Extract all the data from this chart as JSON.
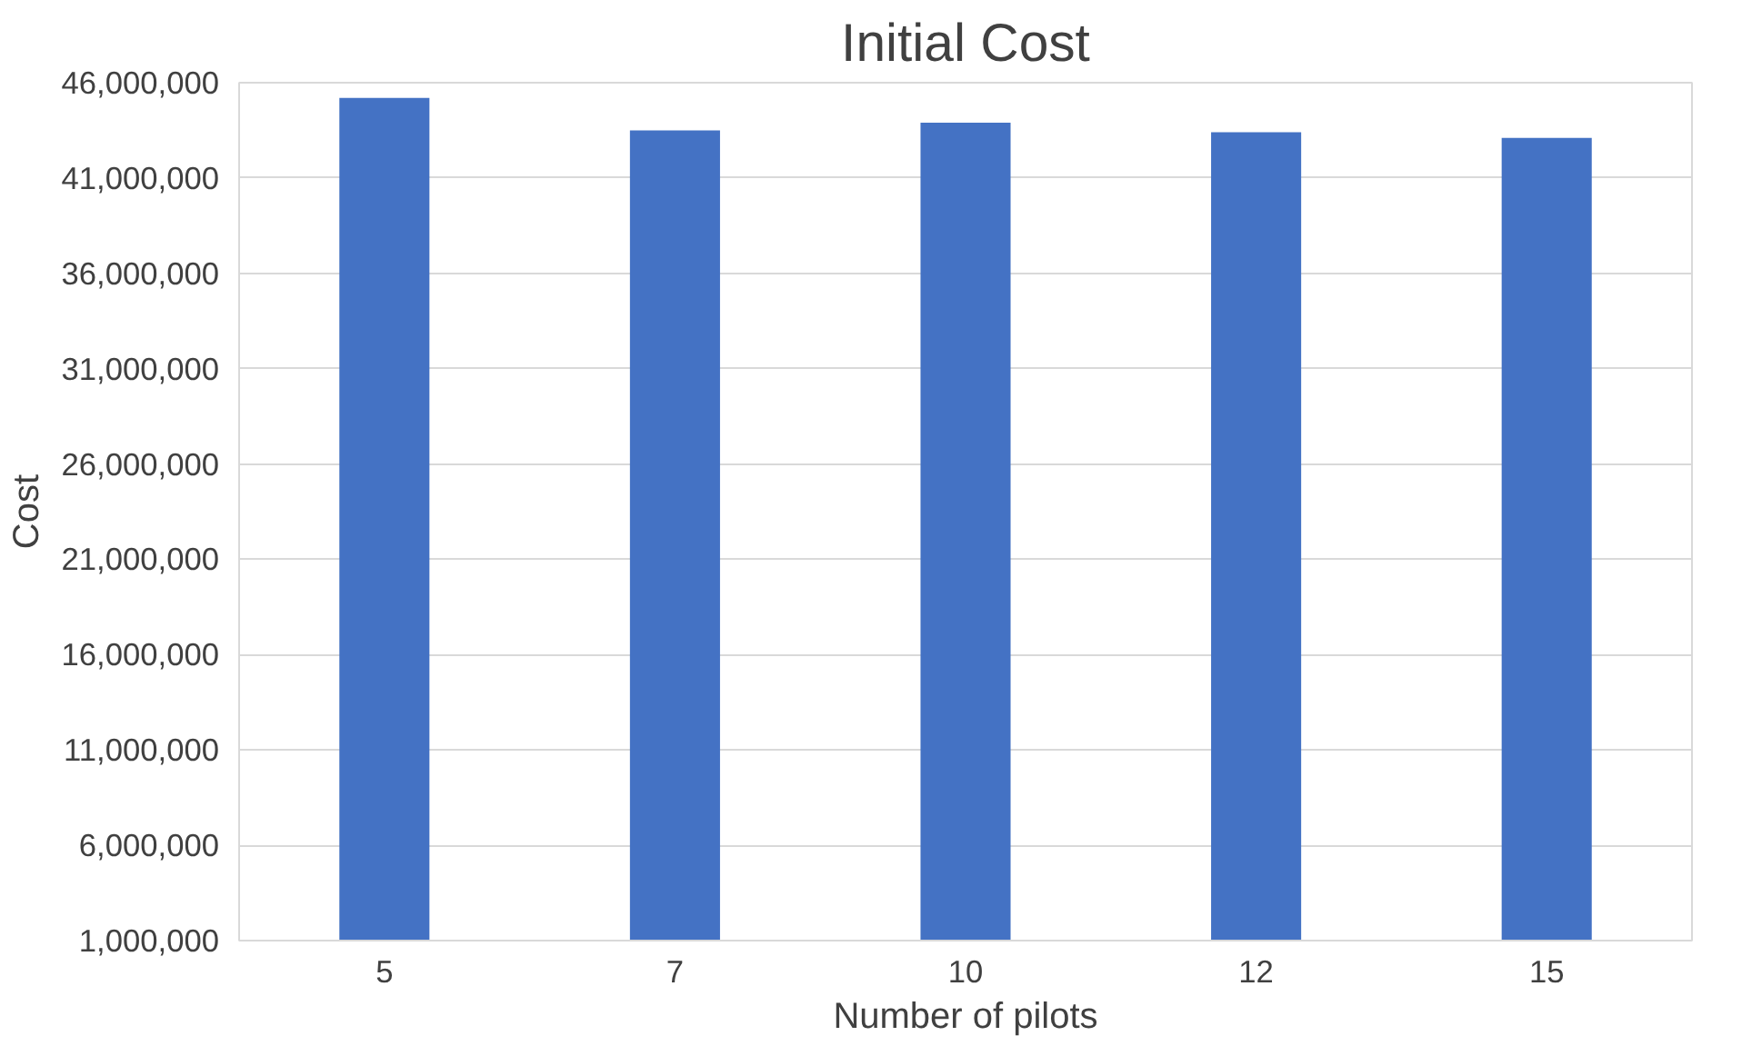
{
  "chart_data": {
    "type": "bar",
    "title": "Initial Cost",
    "xlabel": "Number of pilots",
    "ylabel": "Cost",
    "categories": [
      "5",
      "7",
      "10",
      "12",
      "15"
    ],
    "values": [
      45200000,
      43500000,
      43900000,
      43400000,
      43100000
    ],
    "color": "#4472c4",
    "ylim": [
      1000000,
      46000000
    ],
    "yticks": [
      {
        "value": 1000000,
        "label": "1,000,000"
      },
      {
        "value": 6000000,
        "label": "6,000,000"
      },
      {
        "value": 11000000,
        "label": "11,000,000"
      },
      {
        "value": 16000000,
        "label": "16,000,000"
      },
      {
        "value": 21000000,
        "label": "21,000,000"
      },
      {
        "value": 26000000,
        "label": "26,000,000"
      },
      {
        "value": 31000000,
        "label": "31,000,000"
      },
      {
        "value": 36000000,
        "label": "36,000,000"
      },
      {
        "value": 41000000,
        "label": "41,000,000"
      },
      {
        "value": 46000000,
        "label": "46,000,000"
      }
    ],
    "grid": "y"
  }
}
